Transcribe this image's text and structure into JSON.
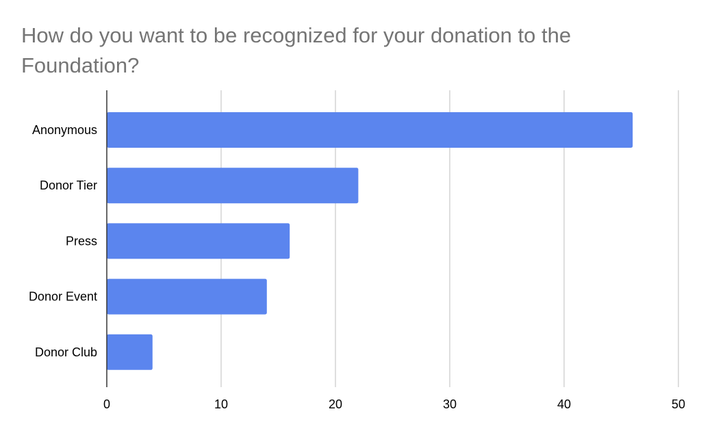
{
  "chart_data": {
    "type": "bar",
    "orientation": "horizontal",
    "title_lines": [
      "How do you want to be recognized for your donation to the",
      "Foundation?"
    ],
    "categories": [
      "Anonymous",
      "Donor Tier",
      "Press",
      "Donor Event",
      "Donor Club"
    ],
    "values": [
      46,
      22,
      16,
      14,
      4
    ],
    "xlim": [
      0,
      50
    ],
    "xticks": [
      0,
      10,
      20,
      30,
      40,
      50
    ],
    "xtick_labels": [
      "0",
      "10",
      "20",
      "30",
      "40",
      "50"
    ],
    "grid": "vertical",
    "legend": "none",
    "bar_color": "#5b85ee",
    "grid_color": "#cccccc",
    "axis_color": "#333333",
    "title_color": "#757575"
  }
}
